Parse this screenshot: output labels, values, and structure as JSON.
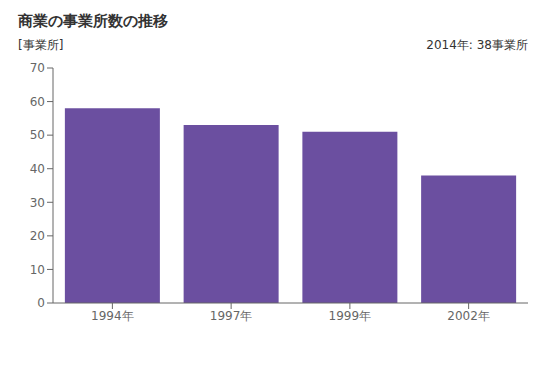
{
  "chart_data": {
    "type": "bar",
    "title": "商業の事業所数の推移",
    "ylabel": "[事業所]",
    "annotation": "2014年: 38事業所",
    "categories": [
      "1994年",
      "1997年",
      "1999年",
      "2002年"
    ],
    "values": [
      58,
      53,
      51,
      38
    ],
    "color": "#6b4fa0",
    "ylim": [
      0,
      70
    ],
    "yticks": [
      0,
      10,
      20,
      30,
      40,
      50,
      60,
      70
    ],
    "grid": false
  }
}
